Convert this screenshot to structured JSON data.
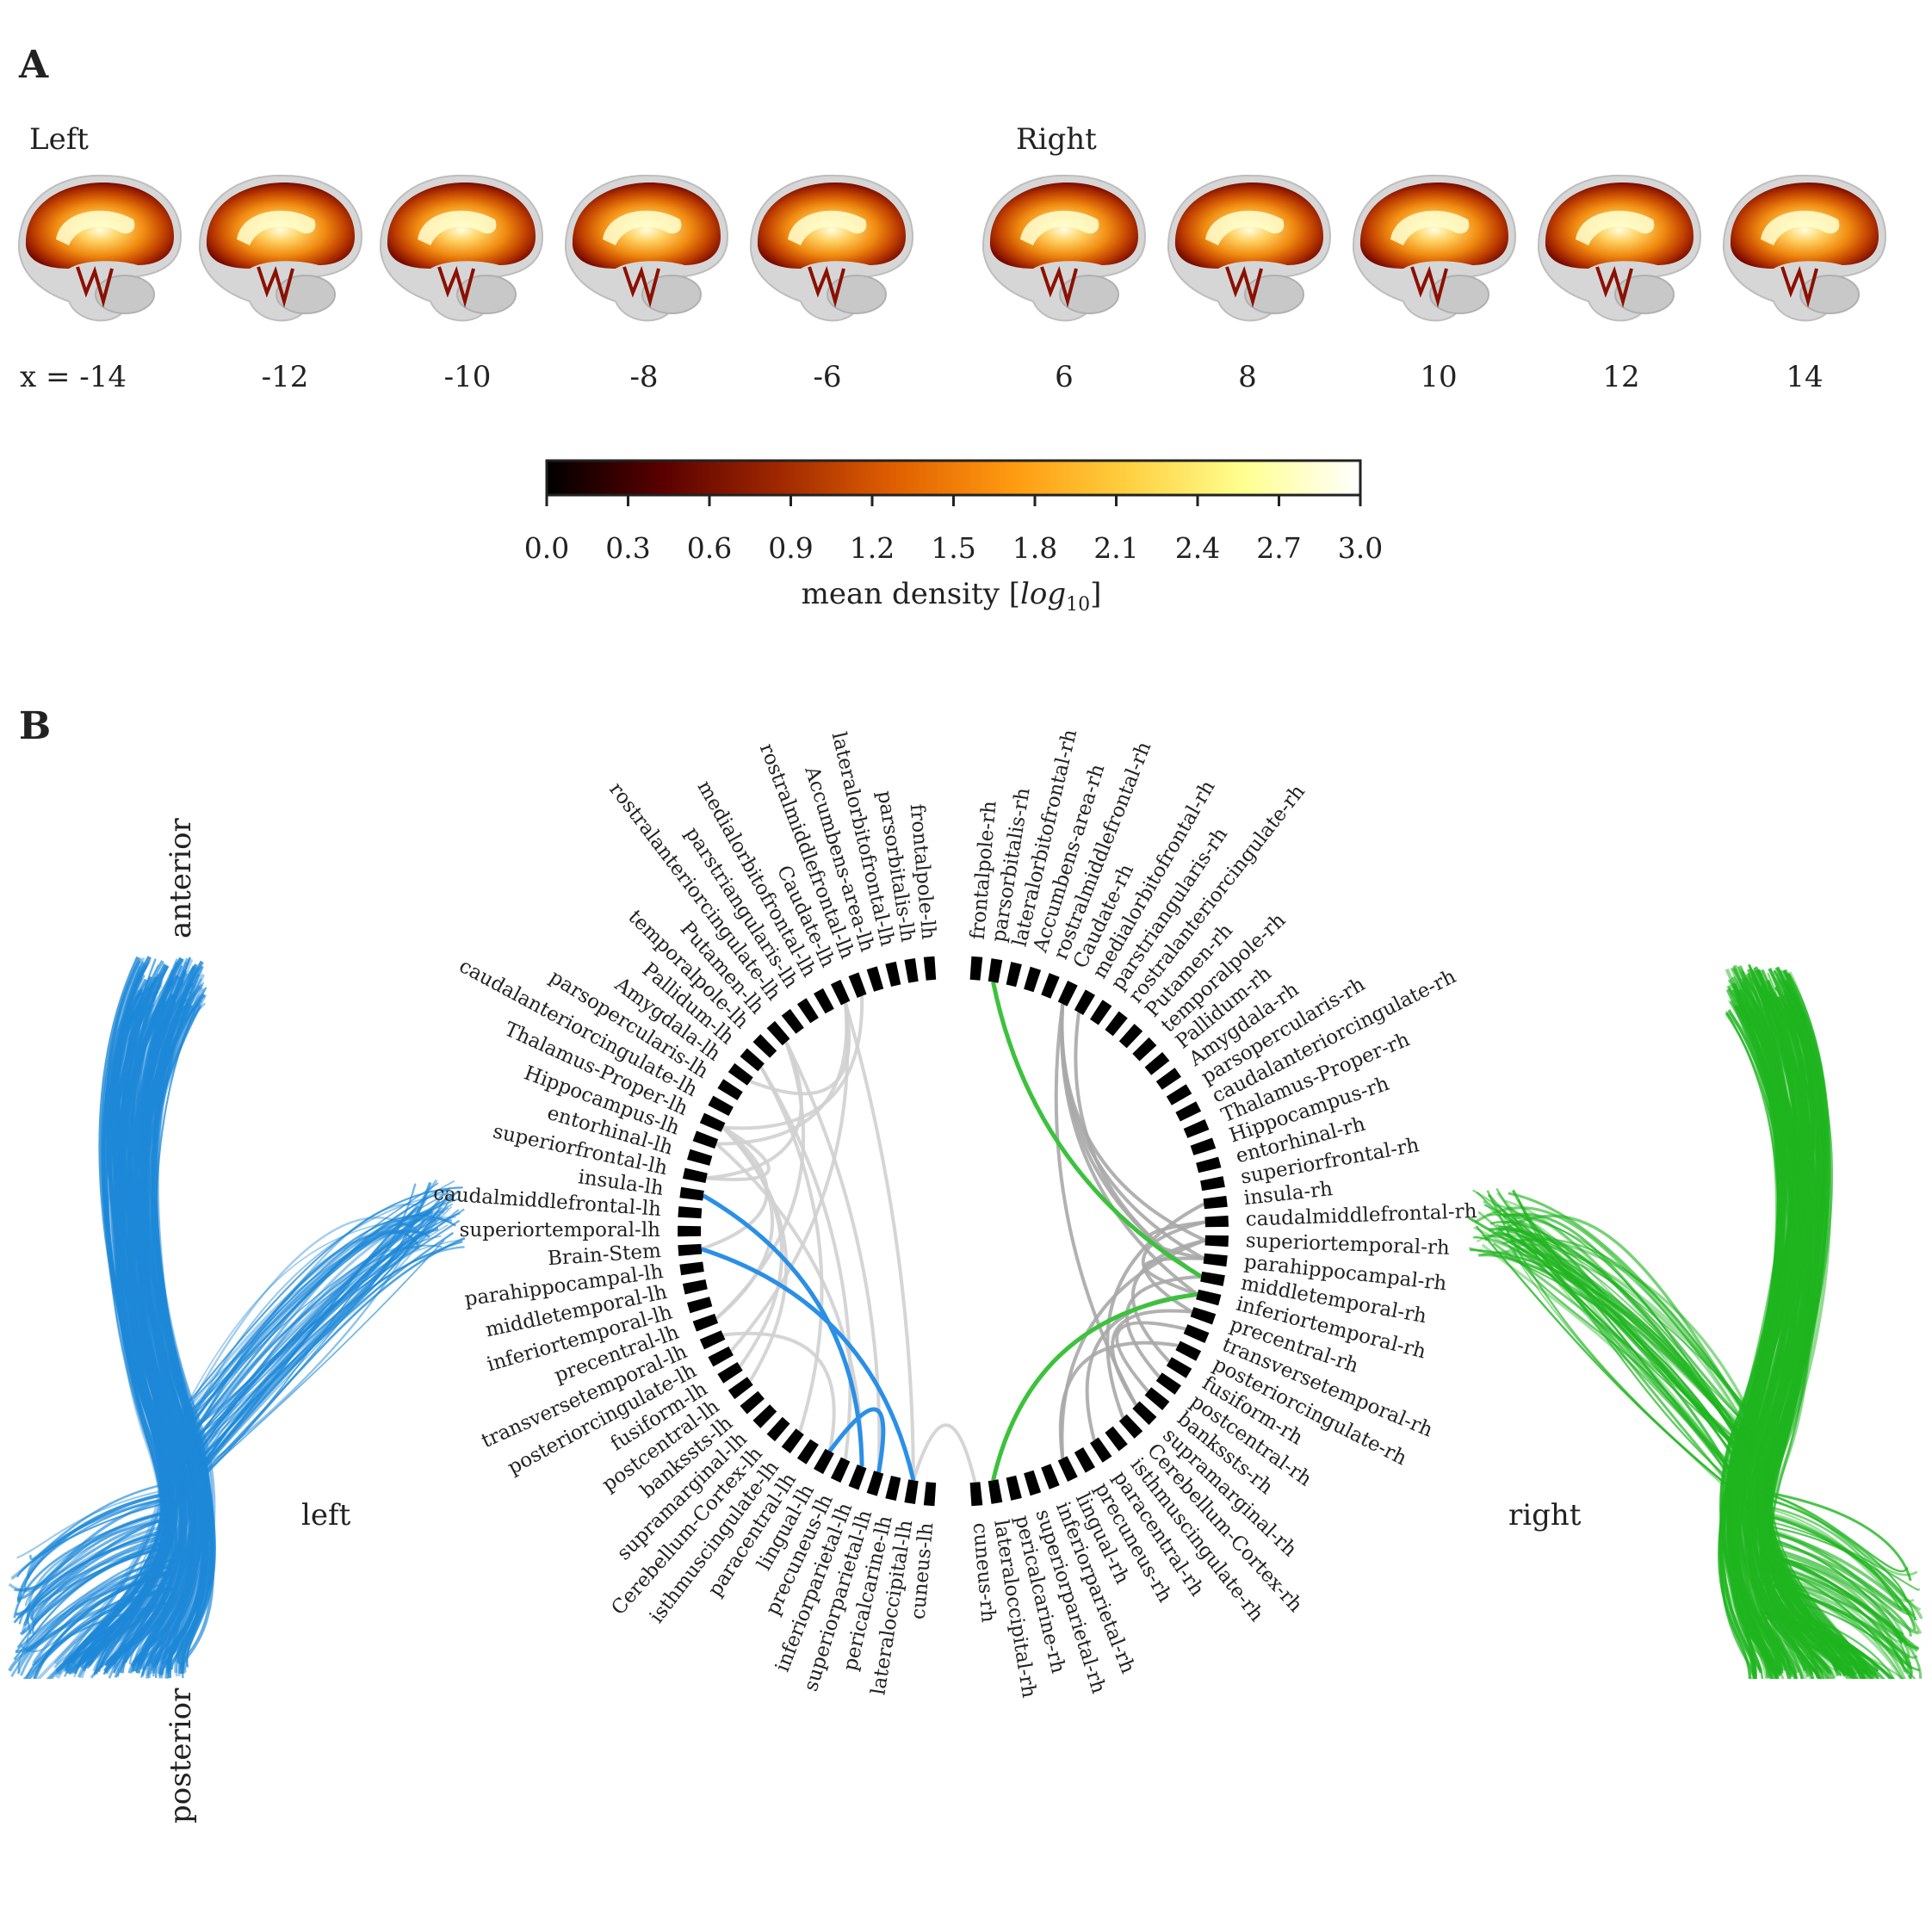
{
  "panel_a": {
    "letter": "A",
    "left_label": "Left",
    "right_label": "Right",
    "left_slices": [
      "x = -14",
      "-12",
      "-10",
      "-8",
      "-6"
    ],
    "right_slices": [
      "6",
      "8",
      "10",
      "12",
      "14"
    ],
    "colorbar": {
      "ticks": [
        "0.0",
        "0.3",
        "0.6",
        "0.9",
        "1.2",
        "1.5",
        "1.8",
        "2.1",
        "2.4",
        "2.7",
        "3.0"
      ],
      "label_main": "mean density ",
      "label_unit": "log",
      "label_sub": "10",
      "colors": [
        "#000000",
        "#5a0000",
        "#a02800",
        "#e06000",
        "#ff9a10",
        "#ffd040",
        "#ffff90",
        "#ffffff"
      ]
    }
  },
  "panel_b": {
    "letter": "B",
    "orient": {
      "anterior": "anterior",
      "posterior": "posterior",
      "left": "left",
      "right": "right"
    },
    "colors": {
      "left_tract": "#1e88d8",
      "right_tract": "#1fb51f",
      "lh_highlight": "#2b8fe6",
      "rh_highlight": "#3cc23c",
      "lh_other": "#d0d0d0",
      "rh_other": "#a8a8a8"
    },
    "lh_labels": [
      "frontalpole-lh",
      "parsorbitalis-lh",
      "lateralorbitofrontal-lh",
      "Accumbens-area-lh",
      "rostralmiddlefrontal-lh",
      "Caudate-lh",
      "medialorbitofrontal-lh",
      "parstriangularis-lh",
      "rostralanteriorcingulate-lh",
      "Putamen-lh",
      "temporalpole-lh",
      "Pallidum-lh",
      "Amygdala-lh",
      "parsopercularis-lh",
      "caudalanteriorcingulate-lh",
      "Thalamus-Proper-lh",
      "Hippocampus-lh",
      "entorhinal-lh",
      "superiorfrontal-lh",
      "insula-lh",
      "caudalmiddlefrontal-lh",
      "superiortemporal-lh",
      "Brain-Stem",
      "parahippocampal-lh",
      "middletemporal-lh",
      "inferiortemporal-lh",
      "precentral-lh",
      "transversetemporal-lh",
      "posteriorcingulate-lh",
      "fusiform-lh",
      "postcentral-lh",
      "bankssts-lh",
      "supramarginal-lh",
      "Cerebellum-Cortex-lh",
      "isthmuscingulate-lh",
      "paracentral-lh",
      "lingual-lh",
      "precuneus-lh",
      "inferiorparietal-lh",
      "superiorparietal-lh",
      "pericalcarine-lh",
      "lateraloccipital-lh",
      "cuneus-lh"
    ],
    "rh_labels": [
      "frontalpole-rh",
      "parsorbitalis-rh",
      "lateralorbitofrontal-rh",
      "Accumbens-area-rh",
      "rostralmiddlefrontal-rh",
      "Caudate-rh",
      "medialorbitofrontal-rh",
      "parstriangularis-rh",
      "rostralanteriorcingulate-rh",
      "Putamen-rh",
      "temporalpole-rh",
      "Pallidum-rh",
      "Amygdala-rh",
      "parsopercularis-rh",
      "caudalanteriorcingulate-rh",
      "Thalamus-Proper-rh",
      "Hippocampus-rh",
      "entorhinal-rh",
      "superiorfrontal-rh",
      "insula-rh",
      "caudalmiddlefrontal-rh",
      "superiortemporal-rh",
      "parahippocampal-rh",
      "middletemporal-rh",
      "inferiortemporal-rh",
      "precentral-rh",
      "transversetemporal-rh",
      "posteriorcingulate-rh",
      "fusiform-rh",
      "postcentral-rh",
      "bankssts-rh",
      "supramarginal-rh",
      "Cerebellum-Cortex-rh",
      "isthmuscingulate-rh",
      "paracentral-rh",
      "precuneus-rh",
      "lingual-rh",
      "inferiorparietal-rh",
      "superiorparietal-rh",
      "pericalcarine-rh",
      "lateraloccipital-rh",
      "cuneus-rh"
    ],
    "lh_connections": [
      {
        "a": "Caudate-lh",
        "b": "lateraloccipital-lh",
        "kind": "other"
      },
      {
        "a": "Putamen-lh",
        "b": "superiorparietal-lh",
        "kind": "other"
      },
      {
        "a": "Pallidum-lh",
        "b": "precuneus-lh",
        "kind": "other"
      },
      {
        "a": "Amygdala-lh",
        "b": "Caudate-lh",
        "kind": "other"
      },
      {
        "a": "Thalamus-Proper-lh",
        "b": "rostralmiddlefrontal-lh",
        "kind": "other"
      },
      {
        "a": "Thalamus-Proper-lh",
        "b": "superiorfrontal-lh",
        "kind": "other"
      },
      {
        "a": "Thalamus-Proper-lh",
        "b": "Brain-Stem",
        "kind": "other"
      },
      {
        "a": "Thalamus-Proper-lh",
        "b": "precentral-lh",
        "kind": "other"
      },
      {
        "a": "Thalamus-Proper-lh",
        "b": "postcentral-lh",
        "kind": "other"
      },
      {
        "a": "Thalamus-Proper-lh",
        "b": "fusiform-lh",
        "kind": "other"
      },
      {
        "a": "Hippocampus-lh",
        "b": "Caudate-lh",
        "kind": "other"
      },
      {
        "a": "Hippocampus-lh",
        "b": "inferiorparietal-lh",
        "kind": "other"
      },
      {
        "a": "superiorfrontal-lh",
        "b": "Putamen-lh",
        "kind": "other"
      },
      {
        "a": "precentral-lh",
        "b": "Putamen-lh",
        "kind": "other"
      },
      {
        "a": "posteriorcingulate-lh",
        "b": "Caudate-lh",
        "kind": "other"
      },
      {
        "a": "isthmuscingulate-lh",
        "b": "Pallidum-lh",
        "kind": "other"
      },
      {
        "a": "transversetemporal-lh",
        "b": "lingual-lh",
        "kind": "other"
      },
      {
        "a": "lateraloccipital-lh",
        "b": "cuneus-rh",
        "kind": "other"
      },
      {
        "a": "insula-lh",
        "b": "inferiorparietal-lh",
        "kind": "highlight"
      },
      {
        "a": "Brain-Stem",
        "b": "lateraloccipital-lh",
        "kind": "highlight"
      },
      {
        "a": "lingual-lh",
        "b": "superiorparietal-lh",
        "kind": "highlight"
      }
    ],
    "rh_connections": [
      {
        "a": "Caudate-rh",
        "b": "superiortemporal-rh",
        "kind": "other"
      },
      {
        "a": "Caudate-rh",
        "b": "middletemporal-rh",
        "kind": "other"
      },
      {
        "a": "Caudate-rh",
        "b": "supramarginal-rh",
        "kind": "other"
      },
      {
        "a": "Caudate-rh",
        "b": "inferiortemporal-rh",
        "kind": "other"
      },
      {
        "a": "Caudate-rh",
        "b": "parahippocampal-rh",
        "kind": "other"
      },
      {
        "a": "medialorbitofrontal-rh",
        "b": "middletemporal-rh",
        "kind": "other"
      },
      {
        "a": "insula-rh",
        "b": "Cerebellum-Cortex-rh",
        "kind": "other"
      },
      {
        "a": "caudalmiddlefrontal-rh",
        "b": "parahippocampal-rh",
        "kind": "other"
      },
      {
        "a": "caudalmiddlefrontal-rh",
        "b": "precentral-rh",
        "kind": "other"
      },
      {
        "a": "superiortemporal-rh",
        "b": "lingual-rh",
        "kind": "other"
      },
      {
        "a": "superiortemporal-rh",
        "b": "fusiform-rh",
        "kind": "other"
      },
      {
        "a": "parahippocampal-rh",
        "b": "inferiortemporal-rh",
        "kind": "other"
      },
      {
        "a": "middletemporal-rh",
        "b": "postcentral-rh",
        "kind": "other"
      },
      {
        "a": "inferiortemporal-rh",
        "b": "paracentral-rh",
        "kind": "other"
      },
      {
        "a": "precentral-rh",
        "b": "supramarginal-rh",
        "kind": "other"
      },
      {
        "a": "transversetemporal-rh",
        "b": "bankssts-rh",
        "kind": "other"
      },
      {
        "a": "posteriorcingulate-rh",
        "b": "lingual-rh",
        "kind": "other"
      },
      {
        "a": "parsorbitalis-rh",
        "b": "middletemporal-rh",
        "kind": "highlight"
      },
      {
        "a": "inferiortemporal-rh",
        "b": "lateraloccipital-rh",
        "kind": "highlight"
      },
      {
        "a": "superiortemporal-rh",
        "b": "superiortemporal-rh",
        "kind": "none"
      }
    ]
  }
}
